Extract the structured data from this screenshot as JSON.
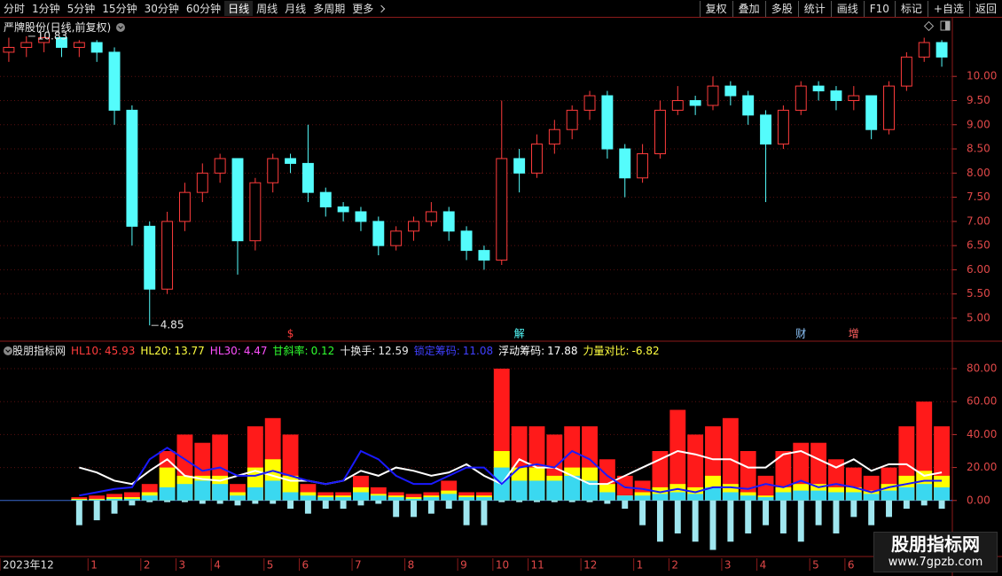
{
  "toolbar": {
    "left": [
      "分时",
      "1分钟",
      "5分钟",
      "15分钟",
      "30分钟",
      "60分钟",
      "日线",
      "周线",
      "月线",
      "多周期",
      "更多"
    ],
    "right": [
      "复权",
      "叠加",
      "多股",
      "统计",
      "画线",
      "F10",
      "标记",
      "+自选",
      "返回"
    ]
  },
  "chart_data": [
    {
      "type": "candlestick",
      "title": "严牌股份(日线,前复权)",
      "categories": [
        "2023年12",
        null,
        null,
        null,
        null,
        "1",
        null,
        null,
        "2",
        null,
        "3",
        null,
        "4",
        null,
        null,
        "5",
        null,
        "6",
        null,
        null,
        "7",
        null,
        null,
        "8",
        null,
        null,
        "9",
        null,
        "10",
        null,
        "11",
        null,
        null,
        "12",
        null,
        null,
        "1",
        null,
        "2",
        null,
        null,
        "3",
        null,
        "4",
        null,
        null,
        "5",
        null,
        "6",
        null,
        null,
        null,
        null,
        null
      ],
      "open": [
        10.5,
        10.6,
        10.7,
        10.8,
        10.6,
        10.7,
        10.5,
        9.3,
        6.9,
        5.6,
        7.0,
        7.6,
        8.0,
        8.3,
        6.6,
        7.8,
        8.3,
        8.2,
        7.6,
        7.3,
        7.2,
        7.0,
        6.5,
        6.8,
        7.0,
        7.2,
        6.8,
        6.4,
        6.2,
        8.3,
        8.0,
        8.6,
        8.9,
        9.3,
        9.6,
        8.5,
        7.9,
        8.4,
        9.3,
        9.5,
        9.4,
        9.8,
        9.6,
        9.2,
        8.6,
        9.3,
        9.8,
        9.7,
        9.5,
        9.6,
        8.9,
        9.8,
        10.4,
        10.7
      ],
      "high": [
        10.8,
        10.83,
        10.82,
        10.8,
        10.75,
        10.75,
        10.6,
        9.4,
        7.0,
        7.2,
        7.8,
        8.2,
        8.4,
        8.3,
        7.9,
        8.4,
        8.4,
        9.0,
        7.7,
        7.4,
        7.3,
        7.1,
        6.9,
        7.1,
        7.4,
        7.3,
        6.9,
        6.5,
        9.5,
        8.5,
        8.8,
        9.1,
        9.4,
        9.7,
        9.7,
        8.6,
        8.6,
        9.5,
        9.8,
        9.6,
        10.0,
        9.9,
        9.7,
        9.3,
        9.4,
        9.9,
        9.9,
        9.8,
        9.8,
        9.6,
        9.9,
        10.5,
        10.8,
        10.75
      ],
      "low": [
        10.3,
        10.4,
        10.5,
        10.4,
        10.4,
        10.3,
        9.0,
        6.5,
        4.85,
        5.5,
        6.8,
        7.4,
        7.8,
        5.9,
        6.4,
        7.6,
        8.0,
        7.4,
        7.1,
        7.0,
        6.8,
        6.3,
        6.4,
        6.6,
        6.9,
        6.6,
        6.2,
        6.0,
        6.1,
        7.6,
        7.9,
        8.4,
        8.7,
        9.1,
        8.3,
        7.5,
        7.8,
        8.3,
        9.2,
        9.2,
        9.3,
        9.4,
        9.0,
        7.4,
        8.5,
        9.2,
        9.5,
        9.3,
        9.3,
        8.7,
        8.8,
        9.7,
        10.3,
        10.2
      ],
      "close": [
        10.6,
        10.7,
        10.8,
        10.6,
        10.7,
        10.5,
        9.3,
        6.9,
        5.6,
        7.0,
        7.6,
        8.0,
        8.3,
        6.6,
        7.8,
        8.3,
        8.2,
        7.6,
        7.3,
        7.2,
        7.0,
        6.5,
        6.8,
        7.0,
        7.2,
        6.8,
        6.4,
        6.2,
        8.3,
        8.0,
        8.6,
        8.9,
        9.3,
        9.6,
        8.5,
        7.9,
        8.4,
        9.3,
        9.5,
        9.4,
        9.8,
        9.6,
        9.2,
        8.6,
        9.3,
        9.8,
        9.7,
        9.5,
        9.6,
        8.9,
        9.8,
        10.4,
        10.7,
        10.4
      ],
      "up_color": "#ff3c3c",
      "down_color": "#54fcfc",
      "ylim": [
        4.56,
        11.14
      ],
      "yticks": [
        {
          "value": 5,
          "label": "5.00"
        },
        {
          "value": 5.5,
          "label": "5.50"
        },
        {
          "value": 6,
          "label": "6.00"
        },
        {
          "value": 6.5,
          "label": "6.50"
        },
        {
          "value": 7,
          "label": "7.00"
        },
        {
          "value": 7.5,
          "label": "7.50"
        },
        {
          "value": 8,
          "label": "8.00"
        },
        {
          "value": 8.5,
          "label": "8.50"
        },
        {
          "value": 9,
          "label": "9.00"
        },
        {
          "value": 9.5,
          "label": "9.50"
        },
        {
          "value": 10,
          "label": "10.00"
        }
      ],
      "grid": true,
      "events": [
        {
          "label": "$",
          "index": 16,
          "color": "#ff3c3c"
        },
        {
          "label": "解",
          "index": 29,
          "color": "#54fcfc"
        },
        {
          "label": "财",
          "index": 45,
          "color": "#8fc8ff"
        },
        {
          "label": "增",
          "index": 48,
          "color": "#ff6060"
        }
      ]
    },
    {
      "type": "bar",
      "title": "股朋指标网",
      "legend": [
        {
          "label": "HL10:",
          "value": 45.93,
          "color": "#ff3c3c"
        },
        {
          "label": "HL20:",
          "value": 13.77,
          "color": "#ffff40"
        },
        {
          "label": "HL30:",
          "value": 4.47,
          "color": "#ff50ff"
        },
        {
          "label": "甘斜率:",
          "value": 0.12,
          "color": "#30ff30"
        },
        {
          "label": "十换手:",
          "value": 12.59,
          "color": "#e8e8e8"
        },
        {
          "label": "锁定筹码:",
          "value": 11.08,
          "color": "#4040ff"
        },
        {
          "label": "浮动筹码:",
          "value": 17.88,
          "color": "#ffffff"
        },
        {
          "label": "力量对比:",
          "value": -6.82,
          "color": "#ffff40"
        }
      ],
      "series": [
        {
          "style": "bar",
          "color": "#ff1a1a",
          "values": [
            null,
            null,
            null,
            null,
            2,
            3,
            4,
            5,
            10,
            30,
            40,
            35,
            40,
            10,
            45,
            50,
            40,
            10,
            5,
            5,
            15,
            8,
            5,
            4,
            5,
            12,
            5,
            5,
            80,
            45,
            45,
            40,
            45,
            45,
            25,
            15,
            12,
            30,
            55,
            40,
            45,
            50,
            30,
            15,
            30,
            35,
            35,
            25,
            20,
            15,
            20,
            45,
            60,
            45
          ]
        },
        {
          "style": "bar",
          "color": "#ffff00",
          "values": [
            null,
            null,
            null,
            null,
            1,
            1,
            2,
            2,
            5,
            20,
            15,
            15,
            15,
            5,
            20,
            25,
            15,
            5,
            3,
            3,
            8,
            4,
            3,
            2,
            3,
            6,
            3,
            3,
            30,
            20,
            20,
            15,
            20,
            20,
            10,
            3,
            5,
            8,
            10,
            8,
            15,
            10,
            5,
            3,
            8,
            10,
            10,
            8,
            8,
            6,
            10,
            15,
            18,
            15
          ]
        },
        {
          "style": "bar",
          "color": "#3ad8f0",
          "values": [
            null,
            null,
            null,
            null,
            0.5,
            0.5,
            1,
            1,
            3,
            8,
            10,
            12,
            10,
            3,
            8,
            12,
            5,
            3,
            2,
            2,
            5,
            3,
            2,
            1,
            2,
            4,
            2,
            2,
            20,
            12,
            12,
            12,
            15,
            12,
            5,
            3,
            3,
            4,
            5,
            4,
            8,
            5,
            3,
            2,
            5,
            6,
            6,
            5,
            5,
            4,
            6,
            8,
            10,
            8
          ]
        },
        {
          "style": "bar",
          "color": "#9fe6ef",
          "values": [
            null,
            null,
            null,
            null,
            -15,
            -12,
            -8,
            -3,
            -1,
            -1,
            -1,
            -2,
            -2,
            -3,
            -2,
            -2,
            -5,
            -8,
            -5,
            -5,
            -3,
            -2,
            -10,
            -10,
            -8,
            -5,
            -15,
            -15,
            -1,
            -1,
            -1,
            -1,
            -1,
            -1,
            -2,
            -5,
            -15,
            -25,
            -20,
            -25,
            -30,
            -25,
            -20,
            -15,
            -20,
            -25,
            -15,
            -20,
            -10,
            -15,
            -10,
            -5,
            -3,
            -5
          ]
        },
        {
          "style": "line",
          "color": "#ffffff",
          "values": [
            null,
            null,
            null,
            null,
            20,
            17,
            12,
            10,
            18,
            25,
            15,
            13,
            12,
            15,
            18,
            15,
            12,
            12,
            10,
            12,
            18,
            15,
            20,
            18,
            15,
            17,
            22,
            15,
            10,
            25,
            20,
            20,
            15,
            10,
            10,
            15,
            20,
            25,
            30,
            28,
            25,
            25,
            20,
            20,
            28,
            30,
            25,
            20,
            25,
            18,
            22,
            22,
            15,
            17
          ]
        },
        {
          "style": "line",
          "color": "#1a1aff",
          "values": [
            null,
            null,
            null,
            null,
            3,
            5,
            7,
            8,
            25,
            32,
            25,
            18,
            20,
            15,
            15,
            18,
            15,
            12,
            10,
            12,
            30,
            25,
            15,
            10,
            10,
            15,
            20,
            20,
            10,
            20,
            22,
            20,
            30,
            25,
            15,
            8,
            7,
            5,
            7,
            5,
            8,
            8,
            7,
            10,
            8,
            12,
            8,
            10,
            8,
            5,
            8,
            10,
            12,
            12
          ]
        }
      ],
      "ylim": [
        -34,
        87
      ],
      "yticks": [
        {
          "value": 0,
          "label": "0.00"
        },
        {
          "value": 20,
          "label": "20.00"
        },
        {
          "value": 40,
          "label": "40.00"
        },
        {
          "value": 60,
          "label": "60.00"
        },
        {
          "value": 80,
          "label": "80.00"
        }
      ],
      "grid": true
    }
  ],
  "watermark": {
    "title": "股朋指标网",
    "url": "www.7gpzb.com"
  }
}
